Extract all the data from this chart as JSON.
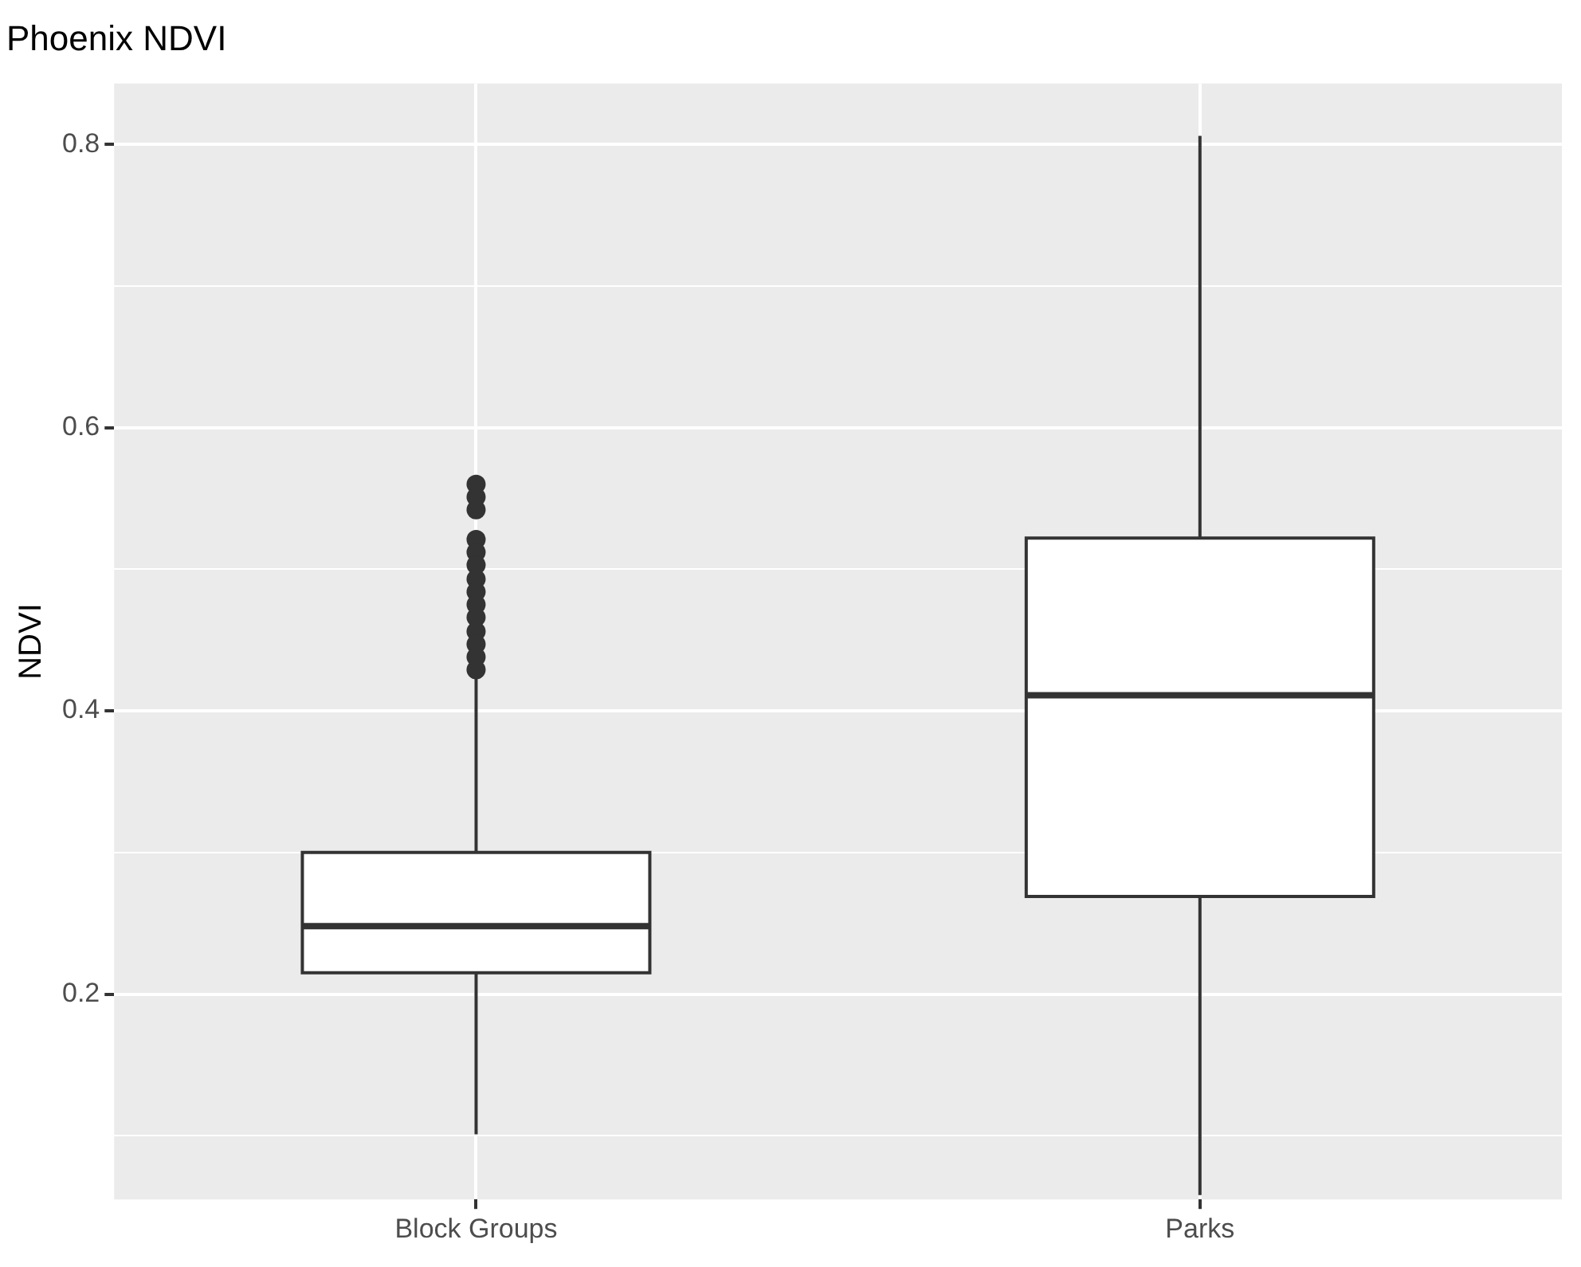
{
  "chart_data": {
    "type": "box",
    "title": "Phoenix NDVI",
    "ylabel": "NDVI",
    "categories": [
      "Block Groups",
      "Parks"
    ],
    "boxes": [
      {
        "low": 0.101,
        "q1": 0.215,
        "median": 0.248,
        "q3": 0.3,
        "high": 0.426,
        "outliers": [
          0.56,
          0.551,
          0.542,
          0.521,
          0.512,
          0.503,
          0.493,
          0.484,
          0.475,
          0.466,
          0.456,
          0.447,
          0.438,
          0.429
        ]
      },
      {
        "low": 0.058,
        "q1": 0.269,
        "median": 0.411,
        "q3": 0.522,
        "high": 0.806
      }
    ],
    "color": "#ffffff",
    "ylim": [
      0.055,
      0.843
    ],
    "yticks": [
      {
        "value": 0.1,
        "label": null
      },
      0.2,
      {
        "value": 0.3,
        "label": null
      },
      0.4,
      {
        "value": 0.5,
        "label": null
      },
      0.6,
      {
        "value": 0.7,
        "label": null
      },
      0.8
    ],
    "grid": true,
    "legend": false
  }
}
